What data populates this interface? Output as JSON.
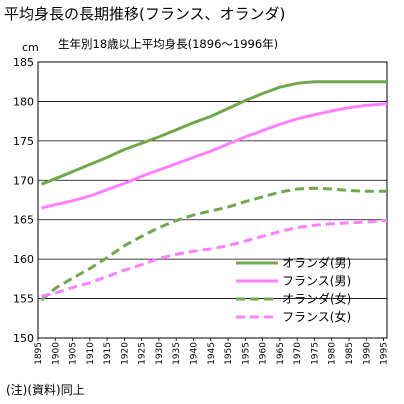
{
  "title": "平均身長の長期推移(フランス、オランダ)",
  "subtitle": "生年別18歳以上平均身長(1896〜1996年)",
  "unit": "cm",
  "footnote": "(注)(資料)同上",
  "chart_data": {
    "type": "line",
    "title": "平均身長の長期推移(フランス、オランダ)",
    "subtitle": "生年別18歳以上平均身長(1896〜1996年)",
    "ylabel": "cm",
    "xlabel": "",
    "ylim": [
      150,
      185
    ],
    "xlim": [
      1895,
      1996
    ],
    "yticks": [
      150,
      155,
      160,
      165,
      170,
      175,
      180,
      185
    ],
    "xticks": [
      1895,
      1900,
      1905,
      1910,
      1915,
      1920,
      1925,
      1930,
      1935,
      1940,
      1945,
      1950,
      1955,
      1960,
      1965,
      1970,
      1975,
      1980,
      1985,
      1990,
      1995
    ],
    "grid": true,
    "legend_position": "bottom-right",
    "x": [
      1896,
      1900,
      1905,
      1910,
      1915,
      1920,
      1925,
      1930,
      1935,
      1940,
      1945,
      1950,
      1955,
      1960,
      1965,
      1970,
      1975,
      1980,
      1985,
      1990,
      1996
    ],
    "series": [
      {
        "name": "オランダ(男)",
        "color": "#70a84c",
        "dash": "solid",
        "values": [
          169.5,
          170.2,
          171.1,
          172.0,
          172.9,
          173.9,
          174.7,
          175.5,
          176.4,
          177.3,
          178.1,
          179.1,
          180.1,
          181.0,
          181.8,
          182.3,
          182.5,
          182.5,
          182.5,
          182.5,
          182.5
        ]
      },
      {
        "name": "フランス(男)",
        "color": "#ff80ff",
        "dash": "solid",
        "values": [
          166.5,
          166.9,
          167.4,
          168.0,
          168.8,
          169.6,
          170.5,
          171.3,
          172.1,
          172.9,
          173.7,
          174.6,
          175.5,
          176.3,
          177.1,
          177.8,
          178.3,
          178.8,
          179.2,
          179.5,
          179.7
        ]
      },
      {
        "name": "オランダ(女)",
        "color": "#70a84c",
        "dash": "dashed",
        "values": [
          154.8,
          156.3,
          157.6,
          158.8,
          160.2,
          161.7,
          162.9,
          164.0,
          164.9,
          165.6,
          166.1,
          166.6,
          167.3,
          167.9,
          168.5,
          168.9,
          169.0,
          168.9,
          168.7,
          168.6,
          168.6
        ]
      },
      {
        "name": "フランス(女)",
        "color": "#ff80ff",
        "dash": "dashed",
        "values": [
          155.3,
          155.7,
          156.4,
          157.0,
          157.8,
          158.6,
          159.3,
          160.1,
          160.6,
          161.0,
          161.3,
          161.7,
          162.3,
          162.9,
          163.5,
          164.0,
          164.3,
          164.5,
          164.6,
          164.7,
          164.9
        ]
      }
    ]
  }
}
